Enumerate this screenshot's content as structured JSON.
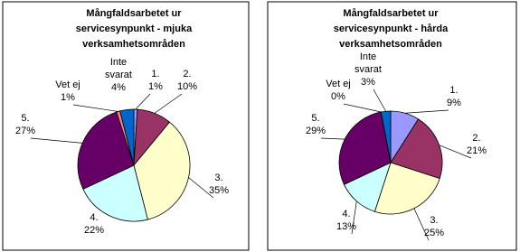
{
  "chart_data": [
    {
      "type": "pie",
      "title": [
        "Mångfaldsarbetet ur",
        "servicesynpunkt - mjuka",
        "verksamhetsområden"
      ],
      "categories": [
        "1.",
        "2.",
        "3.",
        "4.",
        "5.",
        "Vet ej",
        "Inte\nsvarat"
      ],
      "values": [
        1,
        10,
        35,
        22,
        27,
        1,
        4
      ],
      "value_labels": [
        "1%",
        "10%",
        "35%",
        "22%",
        "27%",
        "1%",
        "4%"
      ],
      "colors": [
        "#9999ff",
        "#993366",
        "#ffffcc",
        "#ccffff",
        "#660066",
        "#ff8080",
        "#0066cc"
      ]
    },
    {
      "type": "pie",
      "title": [
        "Mångfaldsarbetet ur",
        "servicesynpunkt - hårda",
        "verksamhetsområden"
      ],
      "categories": [
        "1.",
        "2.",
        "3.",
        "4.",
        "5.",
        "Vet ej",
        "Inte\nsvarat"
      ],
      "values": [
        9,
        21,
        25,
        13,
        29,
        0,
        3
      ],
      "value_labels": [
        "9%",
        "21%",
        "25%",
        "13%",
        "29%",
        "0%",
        "3%"
      ],
      "colors": [
        "#9999ff",
        "#993366",
        "#ffffcc",
        "#ccffff",
        "#660066",
        "#ff8080",
        "#0066cc"
      ]
    }
  ]
}
